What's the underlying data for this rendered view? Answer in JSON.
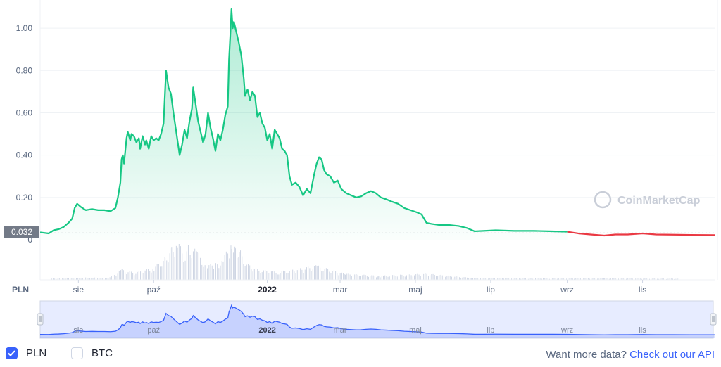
{
  "currency_label": "PLN",
  "current_price_label": "0.032",
  "watermark": "CoinMarketCap",
  "legend": [
    {
      "label": "PLN",
      "checked": true
    },
    {
      "label": "BTC",
      "checked": false
    }
  ],
  "footer": {
    "prompt": "Want more data?",
    "link": "Check out our API"
  },
  "colors": {
    "up": "#16c784",
    "down": "#ea3943",
    "navigator": "#3861fb",
    "volume": "#cfd6e4"
  },
  "chart_data": {
    "type": "area",
    "ylim": [
      0,
      1.1
    ],
    "y_ticks": [
      0,
      0.2,
      0.4,
      0.6,
      0.8,
      1.0
    ],
    "y_tick_labels": [
      "0",
      "0.20",
      "0.40",
      "0.60",
      "0.80",
      "1.00"
    ],
    "x_ticks": [
      {
        "label": "sie",
        "date": "2021-08-01",
        "bold": false
      },
      {
        "label": "paź",
        "date": "2021-10-01",
        "bold": false
      },
      {
        "label": "2022",
        "date": "2022-01-01",
        "bold": true
      },
      {
        "label": "mar",
        "date": "2022-03-01",
        "bold": false
      },
      {
        "label": "maj",
        "date": "2022-05-01",
        "bold": false
      },
      {
        "label": "lip",
        "date": "2022-07-01",
        "bold": false
      },
      {
        "label": "wrz",
        "date": "2022-09-01",
        "bold": false
      },
      {
        "label": "lis",
        "date": "2022-11-01",
        "bold": false
      }
    ],
    "xlim": [
      "2021-07-01",
      "2022-12-30"
    ],
    "reference_price": 0.032,
    "series": [
      {
        "points": [
          [
            "2021-07-01",
            0.035
          ],
          [
            "2021-07-08",
            0.03
          ],
          [
            "2021-07-12",
            0.045
          ],
          [
            "2021-07-16",
            0.05
          ],
          [
            "2021-07-20",
            0.06
          ],
          [
            "2021-07-24",
            0.08
          ],
          [
            "2021-07-27",
            0.1
          ],
          [
            "2021-07-29",
            0.15
          ],
          [
            "2021-07-31",
            0.17
          ],
          [
            "2021-08-03",
            0.155
          ],
          [
            "2021-08-07",
            0.14
          ],
          [
            "2021-08-12",
            0.145
          ],
          [
            "2021-08-17",
            0.14
          ],
          [
            "2021-08-22",
            0.14
          ],
          [
            "2021-08-27",
            0.135
          ],
          [
            "2021-08-31",
            0.15
          ],
          [
            "2021-09-02",
            0.2
          ],
          [
            "2021-09-04",
            0.27
          ],
          [
            "2021-09-05",
            0.38
          ],
          [
            "2021-09-06",
            0.4
          ],
          [
            "2021-09-07",
            0.36
          ],
          [
            "2021-09-09",
            0.48
          ],
          [
            "2021-09-10",
            0.51
          ],
          [
            "2021-09-12",
            0.47
          ],
          [
            "2021-09-13",
            0.5
          ],
          [
            "2021-09-15",
            0.49
          ],
          [
            "2021-09-17",
            0.46
          ],
          [
            "2021-09-19",
            0.48
          ],
          [
            "2021-09-20",
            0.43
          ],
          [
            "2021-09-22",
            0.49
          ],
          [
            "2021-09-24",
            0.45
          ],
          [
            "2021-09-25",
            0.47
          ],
          [
            "2021-09-27",
            0.43
          ],
          [
            "2021-09-29",
            0.49
          ],
          [
            "2021-10-01",
            0.47
          ],
          [
            "2021-10-03",
            0.48
          ],
          [
            "2021-10-05",
            0.47
          ],
          [
            "2021-10-07",
            0.5
          ],
          [
            "2021-10-09",
            0.55
          ],
          [
            "2021-10-11",
            0.8
          ],
          [
            "2021-10-13",
            0.72
          ],
          [
            "2021-10-15",
            0.69
          ],
          [
            "2021-10-17",
            0.6
          ],
          [
            "2021-10-20",
            0.48
          ],
          [
            "2021-10-22",
            0.4
          ],
          [
            "2021-10-24",
            0.45
          ],
          [
            "2021-10-26",
            0.52
          ],
          [
            "2021-10-28",
            0.48
          ],
          [
            "2021-10-30",
            0.56
          ],
          [
            "2021-11-01",
            0.62
          ],
          [
            "2021-11-02",
            0.72
          ],
          [
            "2021-11-04",
            0.64
          ],
          [
            "2021-11-06",
            0.56
          ],
          [
            "2021-11-08",
            0.51
          ],
          [
            "2021-11-10",
            0.46
          ],
          [
            "2021-11-12",
            0.5
          ],
          [
            "2021-11-14",
            0.6
          ],
          [
            "2021-11-16",
            0.53
          ],
          [
            "2021-11-18",
            0.48
          ],
          [
            "2021-11-20",
            0.42
          ],
          [
            "2021-11-22",
            0.5
          ],
          [
            "2021-11-24",
            0.47
          ],
          [
            "2021-11-26",
            0.52
          ],
          [
            "2021-11-28",
            0.59
          ],
          [
            "2021-11-30",
            0.63
          ],
          [
            "2021-12-01",
            0.85
          ],
          [
            "2021-12-02",
            0.96
          ],
          [
            "2021-12-03",
            1.09
          ],
          [
            "2021-12-04",
            1.0
          ],
          [
            "2021-12-05",
            1.03
          ],
          [
            "2021-12-07",
            0.98
          ],
          [
            "2021-12-09",
            0.93
          ],
          [
            "2021-12-11",
            0.87
          ],
          [
            "2021-12-13",
            0.76
          ],
          [
            "2021-12-14",
            0.68
          ],
          [
            "2021-12-16",
            0.71
          ],
          [
            "2021-12-18",
            0.66
          ],
          [
            "2021-12-20",
            0.7
          ],
          [
            "2021-12-22",
            0.68
          ],
          [
            "2021-12-24",
            0.58
          ],
          [
            "2021-12-26",
            0.6
          ],
          [
            "2021-12-28",
            0.55
          ],
          [
            "2021-12-30",
            0.53
          ],
          [
            "2022-01-01",
            0.47
          ],
          [
            "2022-01-03",
            0.5
          ],
          [
            "2022-01-05",
            0.43
          ],
          [
            "2022-01-07",
            0.52
          ],
          [
            "2022-01-09",
            0.5
          ],
          [
            "2022-01-11",
            0.48
          ],
          [
            "2022-01-13",
            0.43
          ],
          [
            "2022-01-15",
            0.42
          ],
          [
            "2022-01-17",
            0.4
          ],
          [
            "2022-01-19",
            0.3
          ],
          [
            "2022-01-21",
            0.26
          ],
          [
            "2022-01-24",
            0.27
          ],
          [
            "2022-01-27",
            0.25
          ],
          [
            "2022-01-30",
            0.21
          ],
          [
            "2022-02-02",
            0.24
          ],
          [
            "2022-02-05",
            0.22
          ],
          [
            "2022-02-08",
            0.31
          ],
          [
            "2022-02-10",
            0.36
          ],
          [
            "2022-02-12",
            0.39
          ],
          [
            "2022-02-14",
            0.38
          ],
          [
            "2022-02-16",
            0.33
          ],
          [
            "2022-02-18",
            0.31
          ],
          [
            "2022-02-21",
            0.3
          ],
          [
            "2022-02-24",
            0.27
          ],
          [
            "2022-02-27",
            0.28
          ],
          [
            "2022-03-02",
            0.24
          ],
          [
            "2022-03-06",
            0.22
          ],
          [
            "2022-03-10",
            0.21
          ],
          [
            "2022-03-14",
            0.2
          ],
          [
            "2022-03-18",
            0.205
          ],
          [
            "2022-03-22",
            0.22
          ],
          [
            "2022-03-26",
            0.23
          ],
          [
            "2022-03-30",
            0.22
          ],
          [
            "2022-04-03",
            0.2
          ],
          [
            "2022-04-08",
            0.19
          ],
          [
            "2022-04-12",
            0.18
          ],
          [
            "2022-04-17",
            0.17
          ],
          [
            "2022-04-22",
            0.15
          ],
          [
            "2022-04-27",
            0.14
          ],
          [
            "2022-05-02",
            0.13
          ],
          [
            "2022-05-06",
            0.12
          ],
          [
            "2022-05-10",
            0.08
          ],
          [
            "2022-05-14",
            0.075
          ],
          [
            "2022-05-20",
            0.07
          ],
          [
            "2022-05-28",
            0.07
          ],
          [
            "2022-06-05",
            0.065
          ],
          [
            "2022-06-12",
            0.055
          ],
          [
            "2022-06-18",
            0.04
          ],
          [
            "2022-06-25",
            0.042
          ],
          [
            "2022-07-05",
            0.045
          ],
          [
            "2022-07-20",
            0.042
          ],
          [
            "2022-08-05",
            0.042
          ],
          [
            "2022-08-20",
            0.04
          ],
          [
            "2022-09-01",
            0.038
          ]
        ]
      },
      {
        "points": [
          [
            "2022-09-01",
            0.038
          ],
          [
            "2022-09-10",
            0.03
          ],
          [
            "2022-09-20",
            0.025
          ],
          [
            "2022-10-01",
            0.02
          ],
          [
            "2022-10-10",
            0.025
          ],
          [
            "2022-10-20",
            0.025
          ],
          [
            "2022-11-01",
            0.03
          ],
          [
            "2022-11-05",
            0.028
          ],
          [
            "2022-11-12",
            0.025
          ],
          [
            "2022-11-25",
            0.024
          ],
          [
            "2022-12-10",
            0.023
          ],
          [
            "2022-12-30",
            0.022
          ]
        ]
      }
    ],
    "volume": [
      [
        "2021-07-10",
        0.03
      ],
      [
        "2021-08-10",
        0.06
      ],
      [
        "2021-08-25",
        0.05
      ],
      [
        "2021-09-05",
        0.25
      ],
      [
        "2021-09-15",
        0.18
      ],
      [
        "2021-10-01",
        0.3
      ],
      [
        "2021-10-10",
        0.55
      ],
      [
        "2021-10-14",
        0.75
      ],
      [
        "2021-10-20",
        1.0
      ],
      [
        "2021-10-25",
        0.6
      ],
      [
        "2021-10-29",
        0.85
      ],
      [
        "2021-11-05",
        0.7
      ],
      [
        "2021-11-12",
        0.35
      ],
      [
        "2021-11-20",
        0.4
      ],
      [
        "2021-11-26",
        0.5
      ],
      [
        "2021-12-03",
        1.05
      ],
      [
        "2021-12-06",
        0.85
      ],
      [
        "2021-12-10",
        0.7
      ],
      [
        "2021-12-15",
        0.4
      ],
      [
        "2021-12-25",
        0.25
      ],
      [
        "2022-01-10",
        0.2
      ],
      [
        "2022-02-10",
        0.35
      ],
      [
        "2022-02-15",
        0.3
      ],
      [
        "2022-03-05",
        0.15
      ],
      [
        "2022-04-01",
        0.1
      ],
      [
        "2022-05-10",
        0.15
      ],
      [
        "2022-06-15",
        0.05
      ],
      [
        "2022-08-01",
        0.04
      ],
      [
        "2022-10-01",
        0.04
      ],
      [
        "2022-12-01",
        0.03
      ]
    ]
  }
}
